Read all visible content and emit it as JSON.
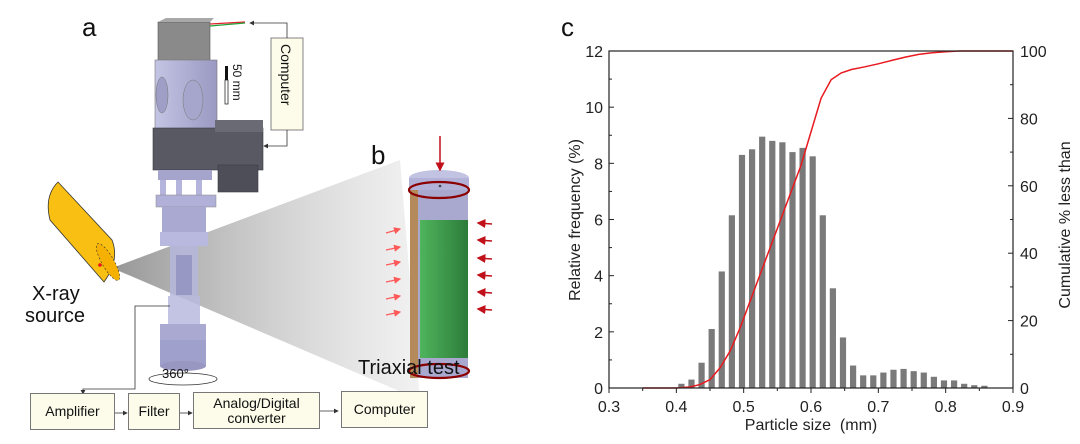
{
  "panels": {
    "a": "a",
    "b": "b",
    "c": "c"
  },
  "diagram": {
    "scale_bar": "50 mm",
    "computer_top": "Computer",
    "xray_label_line1": "X-ray",
    "xray_label_line2": "source",
    "rotation": "360°",
    "triaxial": "Triaxial test",
    "flow": [
      "Amplifier",
      "Filter",
      "Analog/Digital converter",
      "Computer"
    ],
    "flow_adc_line1": "Analog/Digital",
    "flow_adc_line2": "converter",
    "colors": {
      "xray": "#f9bf12",
      "apparatus": "#b3b3d9",
      "motor": "#5b5b66",
      "specimen": "#3a9a4a",
      "ring": "#8b0000",
      "arrow": "#e0202a",
      "box_fill": "#fdfbe9"
    }
  },
  "chart_data": {
    "type": "bar",
    "title": "",
    "xlabel": "Particle size  (mm)",
    "ylabel": "Relative frequency (%)",
    "y2label": "Cumulative % less than",
    "xlim": [
      0.3,
      0.9
    ],
    "ylim": [
      0,
      12
    ],
    "y2lim": [
      0,
      100
    ],
    "xticks": [
      "0.3",
      "0.4",
      "0.5",
      "0.6",
      "0.7",
      "0.8",
      "0.9"
    ],
    "yticks": [
      "0",
      "2",
      "4",
      "6",
      "8",
      "10",
      "12"
    ],
    "y2ticks": [
      "0",
      "20",
      "40",
      "60",
      "80",
      "100"
    ],
    "grid": false,
    "bar_color": "#7a7a7a",
    "line_color": "#e8191f",
    "series": [
      {
        "name": "Relative frequency",
        "type": "bar",
        "x": [
          0.4075,
          0.4225,
          0.4375,
          0.4525,
          0.4675,
          0.4825,
          0.4975,
          0.5125,
          0.5275,
          0.5425,
          0.5575,
          0.5725,
          0.5875,
          0.6025,
          0.6175,
          0.6325,
          0.6475,
          0.6625,
          0.6775,
          0.6925,
          0.7075,
          0.7225,
          0.7375,
          0.7525,
          0.7675,
          0.7825,
          0.7975,
          0.8125,
          0.8275,
          0.8425,
          0.8575
        ],
        "values": [
          0.15,
          0.3,
          0.9,
          2.1,
          4.15,
          6.15,
          8.3,
          8.5,
          8.95,
          8.8,
          8.75,
          8.4,
          8.55,
          8.25,
          6.15,
          3.55,
          1.8,
          0.8,
          0.45,
          0.45,
          0.55,
          0.65,
          0.68,
          0.6,
          0.55,
          0.4,
          0.27,
          0.27,
          0.15,
          0.1,
          0.08
        ]
      },
      {
        "name": "Cumulative % less than",
        "type": "line",
        "axis": "right",
        "x": [
          0.35,
          0.4,
          0.42,
          0.435,
          0.45,
          0.465,
          0.48,
          0.495,
          0.51,
          0.525,
          0.54,
          0.555,
          0.57,
          0.585,
          0.6,
          0.615,
          0.63,
          0.645,
          0.66,
          0.68,
          0.7,
          0.72,
          0.74,
          0.76,
          0.78,
          0.8,
          0.82,
          0.85,
          0.9
        ],
        "values": [
          0,
          0,
          0.3,
          1.0,
          2.5,
          6,
          11,
          18,
          26,
          34,
          42,
          50,
          58,
          66,
          76,
          86,
          91.5,
          93.5,
          94.5,
          95.3,
          96.2,
          97.2,
          98.2,
          99.0,
          99.5,
          99.8,
          100,
          100,
          100
        ]
      }
    ]
  }
}
